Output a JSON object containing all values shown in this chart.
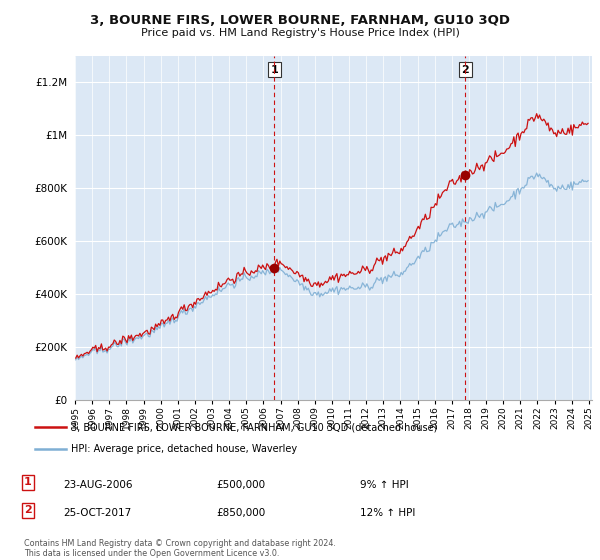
{
  "title": "3, BOURNE FIRS, LOWER BOURNE, FARNHAM, GU10 3QD",
  "subtitle": "Price paid vs. HM Land Registry's House Price Index (HPI)",
  "ylim": [
    0,
    1300000
  ],
  "yticks": [
    0,
    200000,
    400000,
    600000,
    800000,
    1000000,
    1200000
  ],
  "ytick_labels": [
    "£0",
    "£200K",
    "£400K",
    "£600K",
    "£800K",
    "£1M",
    "£1.2M"
  ],
  "hpi_color": "#7fafd4",
  "price_color": "#cc1111",
  "marker_color": "#990000",
  "vline_color": "#cc1111",
  "bg_color": "#dce8f5",
  "plot_bg": "#ffffff",
  "grid_color": "#ffffff",
  "legend_label_price": "3, BOURNE FIRS, LOWER BOURNE, FARNHAM, GU10 3QD (detached house)",
  "legend_label_hpi": "HPI: Average price, detached house, Waverley",
  "transaction1_date": "23-AUG-2006",
  "transaction1_price": "£500,000",
  "transaction1_hpi": "9% ↑ HPI",
  "transaction2_date": "25-OCT-2017",
  "transaction2_price": "£850,000",
  "transaction2_hpi": "12% ↑ HPI",
  "footnote": "Contains HM Land Registry data © Crown copyright and database right 2024.\nThis data is licensed under the Open Government Licence v3.0.",
  "sale1_year": 2006.63,
  "sale1_value": 500000,
  "sale2_year": 2017.79,
  "sale2_value": 850000,
  "xmin": 1995,
  "xmax": 2025.2
}
